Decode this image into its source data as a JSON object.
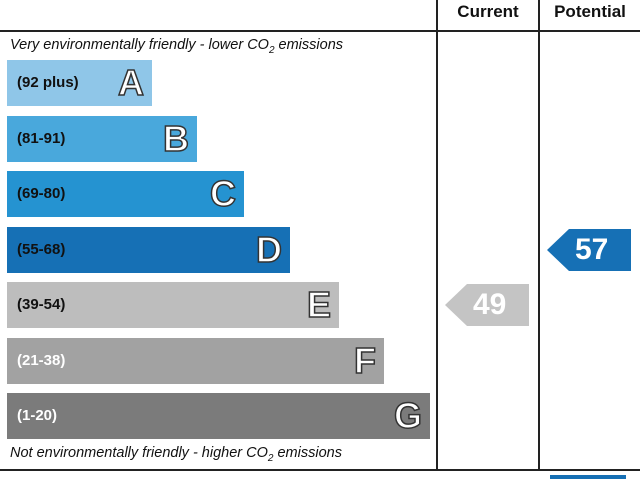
{
  "headers": {
    "current": "Current",
    "potential": "Potential"
  },
  "notes": {
    "top_prefix": "Very environmentally friendly - lower C",
    "top_sub": "2",
    "top_suffix": " emissions",
    "top_o": "O",
    "bottom_prefix": "Not environmentally friendly - higher C",
    "bottom_o": "O",
    "bottom_sub": "2",
    "bottom_suffix": " emissions"
  },
  "chart_data": {
    "type": "bar",
    "categories": [
      "A",
      "B",
      "C",
      "D",
      "E",
      "F",
      "G"
    ],
    "bands": [
      {
        "letter": "A",
        "range": "(92 plus)",
        "min": 92,
        "max": 100,
        "color": "#8fc6e8",
        "text_color": "#111111"
      },
      {
        "letter": "B",
        "range": "(81-91)",
        "min": 81,
        "max": 91,
        "color": "#49a8dc",
        "text_color": "#111111"
      },
      {
        "letter": "C",
        "range": "(69-80)",
        "min": 69,
        "max": 80,
        "color": "#2593d1",
        "text_color": "#111111"
      },
      {
        "letter": "D",
        "range": "(55-68)",
        "min": 55,
        "max": 68,
        "color": "#1670b5",
        "text_color": "#111111"
      },
      {
        "letter": "E",
        "range": "(39-54)",
        "min": 39,
        "max": 54,
        "color": "#bdbdbd",
        "text_color": "#111111"
      },
      {
        "letter": "F",
        "range": "(21-38)",
        "min": 21,
        "max": 38,
        "color": "#a2a2a2",
        "text_color": "#ffffff"
      },
      {
        "letter": "G",
        "range": "(1-20)",
        "min": 1,
        "max": 20,
        "color": "#7b7b7b",
        "text_color": "#ffffff"
      }
    ],
    "series": [
      {
        "name": "Current",
        "value": 49,
        "color": "#c4c4c4"
      },
      {
        "name": "Potential",
        "value": 57,
        "color": "#1670b5"
      }
    ]
  }
}
